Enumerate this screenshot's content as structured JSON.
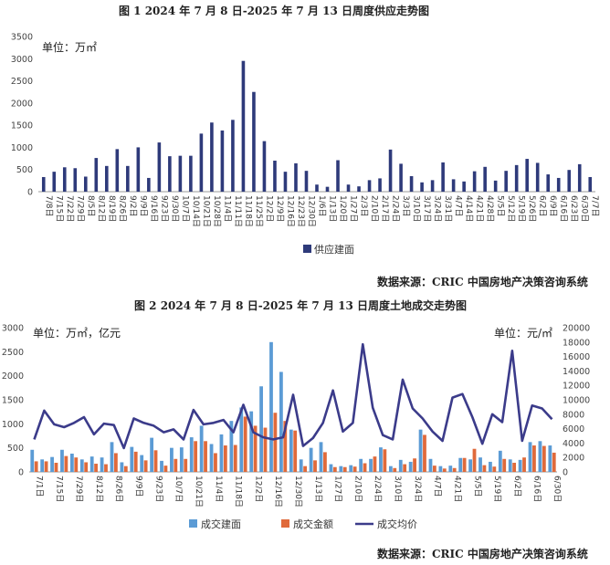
{
  "chart_data": [
    {
      "type": "bar",
      "title": "图 1   2024 年 7 月 8 日-2025 年 7 月 13 日周度供应走势图",
      "unit_label": "单位：万㎡",
      "ylim": [
        0,
        3500
      ],
      "yticks": [
        "0",
        "500",
        "1000",
        "1500",
        "2000",
        "2500",
        "3000",
        "3500"
      ],
      "grid": false,
      "legend_position": "bottom",
      "categories": [
        "7/8日",
        "7/15日",
        "7/22日",
        "7/29日",
        "8/5日",
        "8/12日",
        "8/19日",
        "8/26日",
        "9/2日",
        "9/9日",
        "9/16日",
        "9/23日",
        "9/30日",
        "10/7日",
        "10/14日",
        "10/21日",
        "10/28日",
        "11/4日",
        "11/11日",
        "11/18日",
        "11/25日",
        "12/2日",
        "12/9日",
        "12/16日",
        "12/23日",
        "12/30日",
        "1/6日",
        "1/13日",
        "1/20日",
        "1/27日",
        "2/3日",
        "2/10日",
        "2/17日",
        "2/24日",
        "3/3日",
        "3/10日",
        "3/17日",
        "3/24日",
        "3/31日",
        "4/7日",
        "4/14日",
        "4/21日",
        "4/28日",
        "5/5日",
        "5/12日",
        "5/19日",
        "5/26日",
        "6/2日",
        "6/9日",
        "6/16日",
        "6/23日",
        "6/30日",
        "7/7日"
      ],
      "series": [
        {
          "name": "供应建面",
          "color": "#2e3a7a",
          "values": [
            330,
            450,
            550,
            530,
            340,
            760,
            580,
            960,
            580,
            1000,
            310,
            1110,
            800,
            810,
            810,
            1310,
            1560,
            1380,
            1620,
            2950,
            2250,
            1140,
            700,
            450,
            640,
            470,
            160,
            110,
            710,
            160,
            120,
            260,
            300,
            950,
            630,
            350,
            210,
            260,
            660,
            280,
            230,
            460,
            560,
            250,
            470,
            600,
            740,
            650,
            390,
            310,
            490,
            620,
            330
          ]
        }
      ],
      "x_axis_labels": [
        "7/8日",
        "7/15日",
        "7/22日",
        "7/29日",
        "8/5日",
        "8/12日",
        "8/19日",
        "8/26日",
        "9/2日",
        "9/9日",
        "9/16日",
        "9/23日",
        "9/30日",
        "10/7日",
        "10/14日",
        "10/21日",
        "10/28日",
        "11/4日",
        "11/11日",
        "11/18日",
        "11/25日",
        "12/2日",
        "12/9日",
        "12/16日",
        "12/23日",
        "12/30日",
        "1/6日",
        "1/13日",
        "1/20日",
        "1/27日",
        "2/3日",
        "2/10日",
        "2/17日",
        "2/24日",
        "3/3日",
        "3/10日",
        "3/17日",
        "3/24日",
        "3/31日",
        "4/7日",
        "4/14日",
        "4/21日",
        "4/28日",
        "5/5日",
        "5/12日",
        "5/19日",
        "5/26日",
        "6/2日",
        "6/9日",
        "6/16日",
        "6/23日",
        "6/30日",
        "7/7日"
      ],
      "source": "数据来源：CRIC 中国房地产决策咨询系统"
    },
    {
      "type": "bar",
      "title": "图 2   2024 年 7 月 8 日-2025 年 7 月 13 日周度土地成交走势图",
      "unit_label_left": "单位：万㎡，亿元",
      "unit_label_right": "单位：元/㎡",
      "ylim": [
        0,
        3000
      ],
      "y2lim": [
        0,
        20000
      ],
      "yticks": [
        "0",
        "500",
        "1000",
        "1500",
        "2000",
        "2500",
        "3000"
      ],
      "y2ticks": [
        "0",
        "2000",
        "4000",
        "6000",
        "8000",
        "10000",
        "12000",
        "14000",
        "16000",
        "18000",
        "20000"
      ],
      "grid": false,
      "legend_position": "bottom",
      "categories": [
        "7/1日",
        "7/8日",
        "7/15日",
        "7/22日",
        "7/29日",
        "8/5日",
        "8/12日",
        "8/19日",
        "8/26日",
        "9/2日",
        "9/9日",
        "9/16日",
        "9/23日",
        "9/30日",
        "10/7日",
        "10/14日",
        "10/21日",
        "10/28日",
        "11/4日",
        "11/11日",
        "11/18日",
        "11/25日",
        "12/2日",
        "12/9日",
        "12/16日",
        "12/23日",
        "12/30日",
        "1/6日",
        "1/13日",
        "1/20日",
        "1/27日",
        "2/3日",
        "2/10日",
        "2/17日",
        "2/24日",
        "3/3日",
        "3/10日",
        "3/17日",
        "3/24日",
        "3/31日",
        "4/7日",
        "4/14日",
        "4/21日",
        "4/28日",
        "5/5日",
        "5/12日",
        "5/19日",
        "5/26日",
        "6/2日",
        "6/9日",
        "6/16日",
        "6/23日",
        "6/30日"
      ],
      "x_axis_labels": [
        "7/1日",
        "7/15日",
        "7/29日",
        "8/12日",
        "8/26日",
        "9/9日",
        "9/23日",
        "10/7日",
        "10/21日",
        "11/4日",
        "11/18日",
        "12/2日",
        "12/16日",
        "12/30日",
        "1/13日",
        "1/27日",
        "2/10日",
        "2/24日",
        "3/10日",
        "3/24日",
        "4/7日",
        "4/21日",
        "5/5日",
        "5/19日",
        "6/2日",
        "6/16日",
        "6/30日"
      ],
      "series": [
        {
          "name": "成交建面",
          "color": "#5b9bd5",
          "axis": "left",
          "values": [
            460,
            260,
            310,
            460,
            380,
            260,
            320,
            300,
            620,
            200,
            520,
            350,
            710,
            230,
            500,
            510,
            720,
            960,
            580,
            780,
            1060,
            1340,
            1260,
            1780,
            2700,
            2080,
            880,
            260,
            500,
            620,
            160,
            120,
            140,
            270,
            270,
            510,
            120,
            250,
            210,
            880,
            270,
            120,
            130,
            290,
            260,
            300,
            210,
            440,
            260,
            250,
            620,
            640,
            550
          ]
        },
        {
          "name": "成交金额",
          "color": "#e06a3b",
          "axis": "left",
          "values": [
            220,
            220,
            190,
            330,
            300,
            200,
            170,
            160,
            390,
            120,
            420,
            240,
            450,
            130,
            270,
            270,
            640,
            640,
            390,
            550,
            560,
            1150,
            960,
            920,
            1230,
            1060,
            860,
            120,
            240,
            410,
            100,
            100,
            110,
            180,
            320,
            470,
            80,
            160,
            280,
            770,
            130,
            70,
            80,
            290,
            480,
            140,
            110,
            270,
            190,
            300,
            550,
            540,
            400
          ]
        },
        {
          "name": "成交均价",
          "color": "#3b3b8a",
          "axis": "right",
          "values": [
            4500,
            8500,
            6600,
            6200,
            6800,
            7600,
            5200,
            6700,
            6500,
            3300,
            7400,
            6800,
            6400,
            5500,
            5900,
            4500,
            8600,
            6600,
            6800,
            7200,
            5500,
            9300,
            5500,
            4800,
            4500,
            4800,
            10700,
            3600,
            4700,
            6800,
            11300,
            5600,
            6800,
            17700,
            8900,
            5100,
            4500,
            12800,
            8800,
            7400,
            5600,
            4300,
            10300,
            10800,
            7600,
            3900,
            8000,
            6900,
            16800,
            4300,
            9200,
            8800,
            7300
          ]
        }
      ],
      "source": "数据来源：CRIC 中国房地产决策咨询系统"
    }
  ]
}
